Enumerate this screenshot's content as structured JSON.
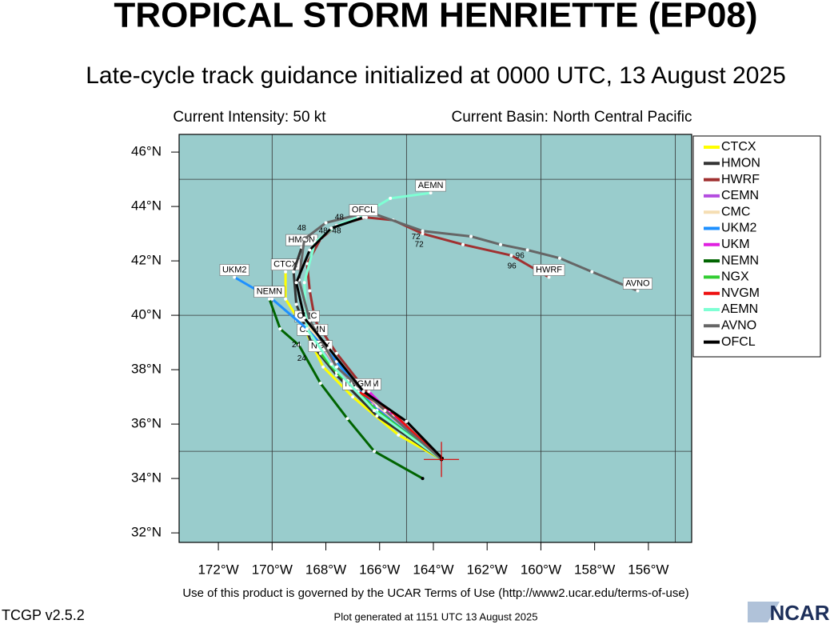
{
  "chart_data": {
    "type": "track",
    "title": "TROPICAL STORM HENRIETTE (EP08)",
    "subtitle": "Late-cycle track guidance initialized at 0000 UTC, 13 August 2025",
    "intensity": "Current Intensity: 50 kt",
    "basin": "Current Basin: North Central Pacific",
    "terms": "Use of this product is governed by the UCAR Terms of Use (http://www2.ucar.edu/terms-of-use)",
    "version": "TCGP v2.5.2",
    "generated": "Plot generated at 1151 UTC   13 August 2025",
    "logo": "NCAR",
    "xlim": [
      -173.46,
      -154.39
    ],
    "ylim": [
      31.65,
      46.65
    ],
    "xticks": [
      {
        "value": -172,
        "label": "172°W"
      },
      {
        "value": -170,
        "label": "170°W"
      },
      {
        "value": -168,
        "label": "168°W"
      },
      {
        "value": -166,
        "label": "166°W"
      },
      {
        "value": -164,
        "label": "164°W"
      },
      {
        "value": -162,
        "label": "162°W"
      },
      {
        "value": -160,
        "label": "160°W"
      },
      {
        "value": -158,
        "label": "158°W"
      },
      {
        "value": -156,
        "label": "156°W"
      }
    ],
    "yticks": [
      {
        "value": 32,
        "label": "32°N"
      },
      {
        "value": 34,
        "label": "34°N"
      },
      {
        "value": 36,
        "label": "36°N"
      },
      {
        "value": 38,
        "label": "38°N"
      },
      {
        "value": 40,
        "label": "40°N"
      },
      {
        "value": 42,
        "label": "42°N"
      },
      {
        "value": 44,
        "label": "44°N"
      },
      {
        "value": 46,
        "label": "46°N"
      }
    ],
    "grid_x": [
      -170,
      -165,
      -160,
      -155
    ],
    "grid_y": [
      35,
      40,
      45
    ],
    "storm_position": {
      "x": -163.7,
      "y": 34.7
    },
    "legend": "right",
    "series": [
      {
        "name": "CTCX",
        "color": "#ffff00",
        "x": [
          -163.7,
          -165.3,
          -167.0,
          -168.1,
          -168.8,
          -169.5,
          -169.5
        ],
        "values": [
          34.7,
          35.6,
          37.0,
          38.1,
          39.5,
          40.6,
          41.6
        ]
      },
      {
        "name": "HMON",
        "color": "#333333",
        "x": [
          -163.7,
          -166.1,
          -167.6,
          -168.5,
          -169.1,
          -169.2,
          -168.9
        ],
        "values": [
          34.7,
          36.3,
          37.8,
          38.9,
          40.4,
          41.6,
          42.5
        ]
      },
      {
        "name": "HWRF",
        "color": "#a03030",
        "x": [
          -163.7,
          -166.0,
          -167.6,
          -168.4,
          -168.6,
          -168.7,
          -168.2,
          -167.6,
          -166.5,
          -165.5,
          -164.4,
          -162.9,
          -161.1,
          -159.7
        ],
        "values": [
          34.7,
          36.6,
          38.6,
          39.8,
          40.9,
          41.9,
          42.8,
          43.3,
          43.6,
          43.5,
          43.0,
          42.6,
          42.2,
          41.4
        ]
      },
      {
        "name": "CEMN",
        "color": "#b44de0",
        "x": [
          -163.7,
          -166.1,
          -167.6,
          -168.5
        ],
        "values": [
          34.7,
          36.6,
          38.1,
          39.2
        ]
      },
      {
        "name": "CMC",
        "color": "#f5deb3",
        "x": [
          -163.7,
          -166.1,
          -167.6,
          -168.7
        ],
        "values": [
          34.7,
          36.7,
          38.1,
          39.7
        ]
      },
      {
        "name": "UKM2",
        "color": "#1e90ff",
        "x": [
          -163.7,
          -166.3,
          -167.6,
          -168.7,
          -170.0,
          -171.4
        ],
        "values": [
          34.7,
          36.7,
          38.3,
          39.5,
          40.6,
          41.4
        ]
      },
      {
        "name": "UKM",
        "color": "#e020e0",
        "x": [
          -163.7,
          -165.5,
          -166.4
        ],
        "values": [
          34.7,
          36.3,
          37.2
        ]
      },
      {
        "name": "NEMN",
        "color": "#006400",
        "x": [
          -164.4,
          -166.2,
          -167.2,
          -168.2,
          -169.0,
          -169.7,
          -170.1
        ],
        "values": [
          34.0,
          35.0,
          36.2,
          37.5,
          38.9,
          39.5,
          40.6
        ]
      },
      {
        "name": "NGX",
        "color": "#32cd32",
        "x": [
          -163.7,
          -166.1,
          -167.6,
          -168.2
        ],
        "values": [
          34.7,
          36.5,
          37.9,
          38.6
        ]
      },
      {
        "name": "NVGM",
        "color": "#ee1111",
        "x": [
          -163.7,
          -165.6,
          -166.8
        ],
        "values": [
          34.7,
          36.5,
          37.2
        ]
      },
      {
        "name": "AEMN",
        "color": "#7fffd4",
        "x": [
          -163.7,
          -166.2,
          -167.8,
          -168.7,
          -168.8,
          -168.4,
          -167.6,
          -166.8,
          -165.6,
          -164.1
        ],
        "values": [
          34.7,
          36.5,
          38.2,
          39.5,
          41.2,
          42.7,
          43.3,
          43.6,
          44.3,
          44.5
        ]
      },
      {
        "name": "AVNO",
        "color": "#666666",
        "x": [
          -163.7,
          -165.8,
          -167.6,
          -168.6,
          -169.0,
          -168.8,
          -168.0,
          -166.4,
          -164.4,
          -162.6,
          -161.5,
          -160.5,
          -159.3,
          -158.1,
          -156.4
        ],
        "values": [
          34.7,
          36.5,
          38.1,
          39.8,
          41.3,
          42.8,
          43.4,
          43.8,
          43.1,
          42.9,
          42.6,
          42.4,
          42.1,
          41.6,
          40.9
        ]
      },
      {
        "name": "OFCL",
        "color": "#000000",
        "x": [
          -163.67,
          -165.0,
          -166.6,
          -167.9,
          -168.8,
          -169.1,
          -168.6,
          -167.8,
          -166.6
        ],
        "values": [
          34.74,
          36.1,
          37.2,
          38.8,
          39.9,
          41.2,
          42.4,
          43.2,
          43.6
        ]
      }
    ],
    "hour_labels": [
      {
        "text": "72",
        "x": -164.65,
        "y": 42.88
      },
      {
        "text": "72",
        "x": -164.53,
        "y": 42.6
      },
      {
        "text": "96",
        "x": -160.78,
        "y": 42.18
      },
      {
        "text": "96",
        "x": -161.08,
        "y": 41.8
      },
      {
        "text": "48",
        "x": -168.9,
        "y": 43.2
      },
      {
        "text": "48",
        "x": -168.1,
        "y": 43.1
      },
      {
        "text": "48",
        "x": -167.6,
        "y": 43.1
      },
      {
        "text": "48",
        "x": -167.5,
        "y": 43.6
      },
      {
        "text": "24",
        "x": -168.9,
        "y": 38.4
      },
      {
        "text": "24",
        "x": -169.1,
        "y": 38.9
      }
    ]
  }
}
